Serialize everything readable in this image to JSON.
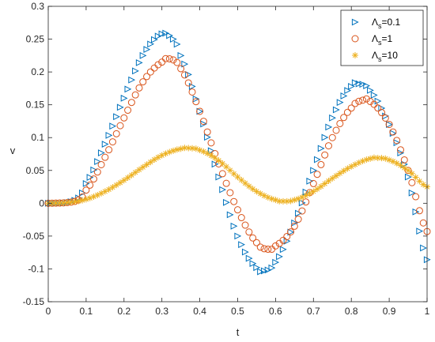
{
  "chart_data": {
    "type": "scatter",
    "xlabel": "t",
    "ylabel": "v",
    "xlim": [
      0,
      1
    ],
    "ylim": [
      -0.15,
      0.3
    ],
    "x_ticks": [
      "0",
      "0.1",
      "0.2",
      "0.3",
      "0.4",
      "0.5",
      "0.6",
      "0.7",
      "0.8",
      "0.9",
      "1"
    ],
    "y_ticks": [
      "-0.15",
      "-0.1",
      "-0.05",
      "0",
      "0.05",
      "0.1",
      "0.15",
      "0.2",
      "0.25",
      "0.3"
    ],
    "grid": false,
    "legend_position": "top-right",
    "legend": [
      {
        "symbol": "Λ",
        "sub": "s",
        "text": "=0.1"
      },
      {
        "symbol": "Λ",
        "sub": "s",
        "text": "=1"
      },
      {
        "symbol": "Λ",
        "sub": "s",
        "text": "=10"
      }
    ],
    "series": [
      {
        "marker": "triangle-right",
        "color": "#0072BD",
        "points": [
          [
            0,
            0
          ],
          [
            0.05,
            0.001
          ],
          [
            0.08,
            0.008
          ],
          [
            0.1,
            0.03
          ],
          [
            0.15,
            0.09
          ],
          [
            0.2,
            0.16
          ],
          [
            0.25,
            0.225
          ],
          [
            0.3,
            0.258
          ],
          [
            0.33,
            0.25
          ],
          [
            0.35,
            0.225
          ],
          [
            0.4,
            0.14
          ],
          [
            0.45,
            0.04
          ],
          [
            0.5,
            -0.05
          ],
          [
            0.55,
            -0.098
          ],
          [
            0.57,
            -0.103
          ],
          [
            0.6,
            -0.09
          ],
          [
            0.65,
            -0.03
          ],
          [
            0.7,
            0.05
          ],
          [
            0.75,
            0.13
          ],
          [
            0.8,
            0.178
          ],
          [
            0.82,
            0.182
          ],
          [
            0.85,
            0.172
          ],
          [
            0.9,
            0.12
          ],
          [
            0.95,
            0.04
          ],
          [
            1.0,
            -0.086
          ]
        ]
      },
      {
        "marker": "circle",
        "color": "#D95319",
        "points": [
          [
            0,
            0
          ],
          [
            0.05,
            0.001
          ],
          [
            0.08,
            0.005
          ],
          [
            0.1,
            0.02
          ],
          [
            0.15,
            0.07
          ],
          [
            0.2,
            0.13
          ],
          [
            0.25,
            0.185
          ],
          [
            0.3,
            0.215
          ],
          [
            0.32,
            0.22
          ],
          [
            0.35,
            0.205
          ],
          [
            0.4,
            0.14
          ],
          [
            0.45,
            0.06
          ],
          [
            0.5,
            -0.01
          ],
          [
            0.55,
            -0.06
          ],
          [
            0.58,
            -0.07
          ],
          [
            0.6,
            -0.065
          ],
          [
            0.65,
            -0.035
          ],
          [
            0.7,
            0.03
          ],
          [
            0.75,
            0.1
          ],
          [
            0.8,
            0.145
          ],
          [
            0.83,
            0.157
          ],
          [
            0.85,
            0.155
          ],
          [
            0.9,
            0.12
          ],
          [
            0.95,
            0.05
          ],
          [
            1.0,
            -0.043
          ]
        ]
      },
      {
        "marker": "asterisk",
        "color": "#EDB120",
        "points": [
          [
            0,
            0
          ],
          [
            0.05,
            0.001
          ],
          [
            0.1,
            0.006
          ],
          [
            0.15,
            0.018
          ],
          [
            0.2,
            0.035
          ],
          [
            0.25,
            0.055
          ],
          [
            0.3,
            0.073
          ],
          [
            0.35,
            0.083
          ],
          [
            0.37,
            0.084
          ],
          [
            0.4,
            0.081
          ],
          [
            0.45,
            0.065
          ],
          [
            0.5,
            0.04
          ],
          [
            0.55,
            0.018
          ],
          [
            0.6,
            0.005
          ],
          [
            0.62,
            0.003
          ],
          [
            0.65,
            0.005
          ],
          [
            0.7,
            0.018
          ],
          [
            0.75,
            0.038
          ],
          [
            0.8,
            0.056
          ],
          [
            0.85,
            0.068
          ],
          [
            0.87,
            0.069
          ],
          [
            0.9,
            0.066
          ],
          [
            0.95,
            0.05
          ],
          [
            1.0,
            0.025
          ]
        ]
      }
    ]
  }
}
